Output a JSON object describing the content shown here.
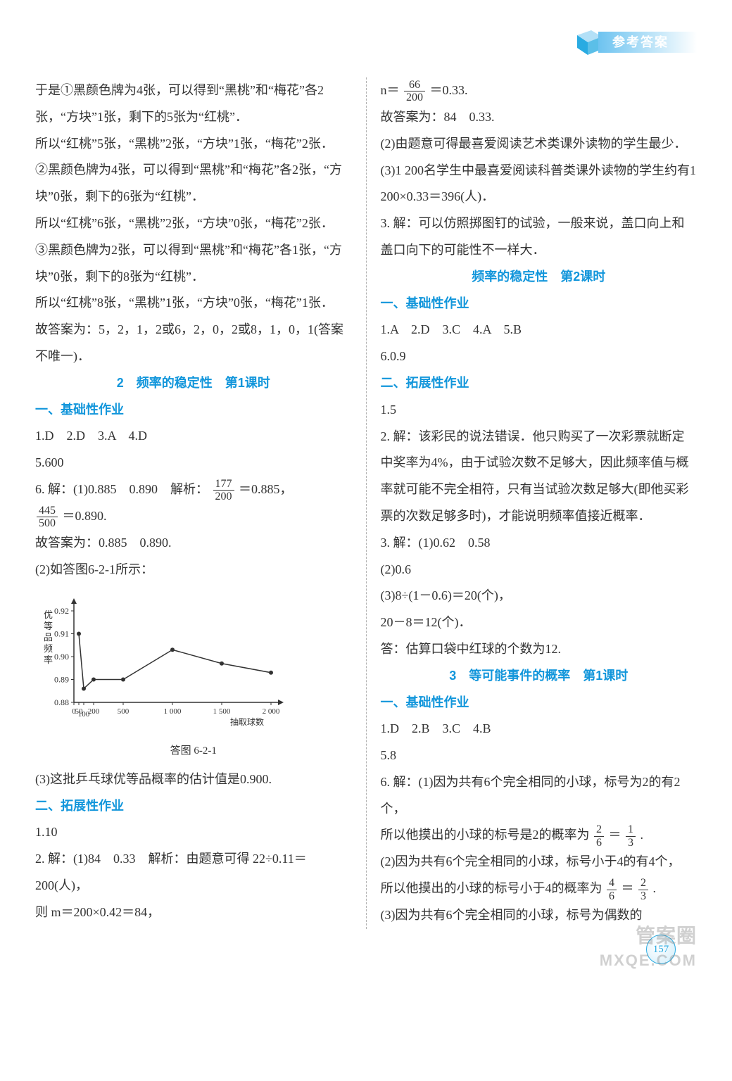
{
  "banner": {
    "label": "参考答案"
  },
  "pageNumber": "157",
  "watermarks": {
    "top": "管案圈",
    "bottom": "MXQE.COM"
  },
  "left": {
    "p1": "于是①黑颜色牌为4张，可以得到“黑桃”和“梅花”各2张，“方块”1张，剩下的5张为“红桃”．",
    "p2": "所以“红桃”5张，“黑桃”2张，“方块”1张，“梅花”2张．",
    "p3": "②黑颜色牌为4张，可以得到“黑桃”和“梅花”各2张，“方块”0张，剩下的6张为“红桃”．",
    "p4": "所以“红桃”6张，“黑桃”2张，“方块”0张，“梅花”2张．",
    "p5": "③黑颜色牌为2张，可以得到“黑桃”和“梅花”各1张，“方块”0张，剩下的8张为“红桃”．",
    "p6": "所以“红桃”8张，“黑桃”1张，“方块”0张，“梅花”1张．",
    "p7": "故答案为：5，2，1，2或6，2，0，2或8，1，0，1(答案不唯一)．",
    "title1": "2　频率的稳定性　第1课时",
    "sub1": "一、基础性作业",
    "p8": "1.D　2.D　3.A　4.D",
    "p9": "5.600",
    "p10a": "6. 解：(1)0.885　0.890　解析：",
    "p10b": "＝0.885，",
    "p11b": "＝0.890.",
    "p12": "故答案为：0.885　0.890.",
    "p13": "(2)如答图6-2-1所示：",
    "chart": {
      "ylabel": "优等品频率",
      "xlabel": "抽取球数",
      "yticks": [
        "0.88",
        "0.89",
        "0.90",
        "0.91",
        "0.92"
      ],
      "xticks": [
        "0",
        "50",
        "100",
        "200",
        "500",
        "1 000",
        "1 500",
        "2 000"
      ],
      "points": [
        {
          "x": 50,
          "y": 0.91
        },
        {
          "x": 100,
          "y": 0.886
        },
        {
          "x": 200,
          "y": 0.89
        },
        {
          "x": 500,
          "y": 0.89
        },
        {
          "x": 1000,
          "y": 0.903
        },
        {
          "x": 1500,
          "y": 0.897
        },
        {
          "x": 2000,
          "y": 0.893
        }
      ],
      "axis_color": "#333333",
      "line_color": "#333333",
      "caption": "答图 6-2-1"
    },
    "p14": "(3)这批乒乓球优等品概率的估计值是0.900.",
    "sub2": "二、拓展性作业",
    "p15": "1.10",
    "p16": "2. 解：(1)84　0.33　解析：由题意可得 22÷0.11＝200(人)，",
    "p17": "则 m＝200×0.42＝84，",
    "frac1": {
      "num": "177",
      "den": "200"
    },
    "frac2": {
      "num": "445",
      "den": "500"
    }
  },
  "right": {
    "p1a": "n＝",
    "p1b": "＝0.33.",
    "frac1": {
      "num": "66",
      "den": "200"
    },
    "p2": "故答案为：84　0.33.",
    "p3": "(2)由题意可得最喜爱阅读艺术类课外读物的学生最少．",
    "p4": "(3)1 200名学生中最喜爱阅读科普类课外读物的学生约有1 200×0.33＝396(人)．",
    "p5": "3. 解：可以仿照掷图钉的试验，一般来说，盖口向上和盖口向下的可能性不一样大．",
    "title1": "频率的稳定性　第2课时",
    "sub1": "一、基础性作业",
    "p6": "1.A　2.D　3.C　4.A　5.B",
    "p7": "6.0.9",
    "sub2": "二、拓展性作业",
    "p8": "1.5",
    "p9": "2. 解：该彩民的说法错误．他只购买了一次彩票就断定中奖率为4%，由于试验次数不足够大，因此频率值与概率就可能不完全相符，只有当试验次数足够大(即他买彩票的次数足够多时)，才能说明频率值接近概率．",
    "p10": "3. 解：(1)0.62　0.58",
    "p11": "(2)0.6",
    "p12": "(3)8÷(1－0.6)＝20(个)，",
    "p13": "20－8＝12(个)．",
    "p14": "答：估算口袋中红球的个数为12.",
    "title2": "3　等可能事件的概率　第1课时",
    "sub3": "一、基础性作业",
    "p15": "1.D　2.B　3.C　4.B",
    "p16": "5.8",
    "p17": "6. 解：(1)因为共有6个完全相同的小球，标号为2的有2个，",
    "p18a": "所以他摸出的小球的标号是2的概率为",
    "p18b": "＝",
    "p18c": ".",
    "frac2": {
      "num": "2",
      "den": "6"
    },
    "frac3": {
      "num": "1",
      "den": "3"
    },
    "p19": "(2)因为共有6个完全相同的小球，标号小于4的有4个，",
    "p20a": "所以他摸出的小球的标号小于4的概率为",
    "p20b": "＝",
    "p20c": ".",
    "frac4": {
      "num": "4",
      "den": "6"
    },
    "frac5": {
      "num": "2",
      "den": "3"
    },
    "p21": "(3)因为共有6个完全相同的小球，标号为偶数的"
  }
}
